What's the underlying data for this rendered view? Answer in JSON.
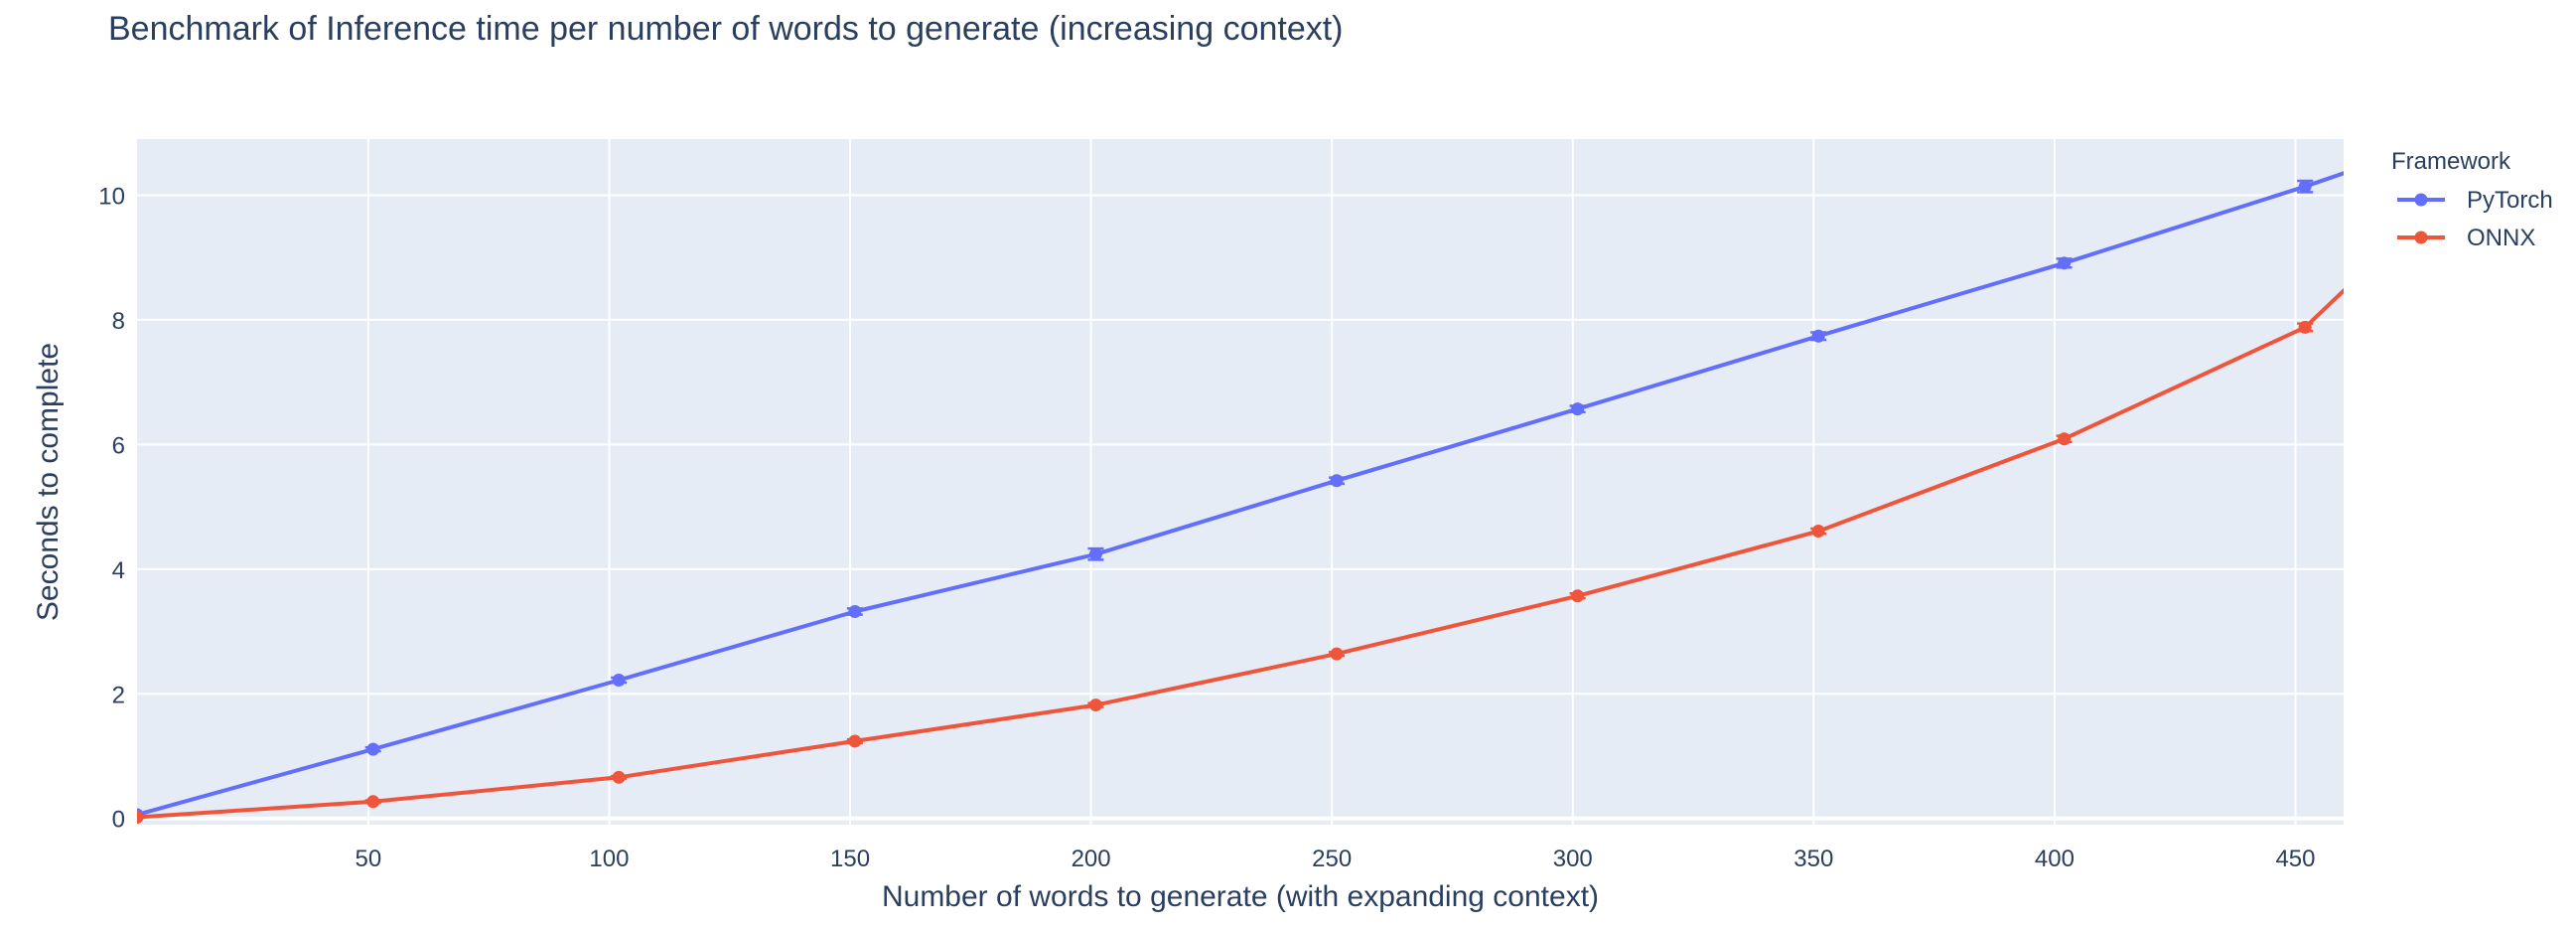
{
  "chart_data": {
    "type": "line",
    "title": "Benchmark of Inference time per number of words to generate (increasing context)",
    "xlabel": "Number of words to generate (with expanding context)",
    "ylabel": "Seconds to complete",
    "xlim": [
      2,
      460
    ],
    "ylim": [
      -0.1,
      10.9
    ],
    "x_ticks": [
      50,
      100,
      150,
      200,
      250,
      300,
      350,
      400,
      450
    ],
    "y_ticks": [
      0,
      2,
      4,
      6,
      8,
      10
    ],
    "grid": true,
    "background": "#e5ecf6",
    "legend": {
      "title": "Framework",
      "position": "top-right-outside"
    },
    "series": [
      {
        "name": "PyTorch",
        "color": "#636efa",
        "x": [
          2,
          51,
          102,
          151,
          201,
          251,
          301,
          351,
          402,
          452,
          470
        ],
        "y": [
          0.06,
          1.11,
          2.22,
          3.32,
          4.24,
          5.42,
          6.57,
          7.74,
          8.91,
          10.14,
          10.62
        ],
        "error": [
          0.02,
          0.03,
          0.04,
          0.05,
          0.09,
          0.05,
          0.05,
          0.06,
          0.07,
          0.09,
          0.0
        ]
      },
      {
        "name": "ONNX",
        "color": "#ef553b",
        "x": [
          2,
          51,
          102,
          151,
          201,
          251,
          301,
          351,
          402,
          452,
          470
        ],
        "y": [
          0.02,
          0.27,
          0.66,
          1.24,
          1.82,
          2.64,
          3.57,
          4.61,
          6.09,
          7.88,
          9.2
        ],
        "error": [
          0.01,
          0.02,
          0.02,
          0.03,
          0.03,
          0.03,
          0.04,
          0.04,
          0.05,
          0.06,
          0.0
        ]
      }
    ]
  }
}
